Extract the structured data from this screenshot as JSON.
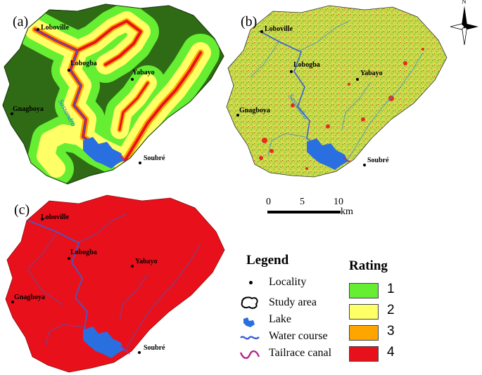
{
  "panels": [
    {
      "letter": "(a)"
    },
    {
      "letter": "(b)"
    },
    {
      "letter": "(c)"
    }
  ],
  "localities": {
    "loboville": "Loboville",
    "lobogba": "Lobogba",
    "yabayo": "Yabayo",
    "gnagboya": "Gnagboya",
    "soubre": "Soubré"
  },
  "river_label": "Sassandra",
  "scale_bar": {
    "ticks": [
      "0",
      "5",
      "10"
    ],
    "unit": "km"
  },
  "north_arrow": {
    "label": "N"
  },
  "legend": {
    "title": "Legend",
    "items": [
      {
        "label": "Locality",
        "icon": "dot-icon"
      },
      {
        "label": "Study area",
        "icon": "outline-icon"
      },
      {
        "label": "Lake",
        "icon": "lake-icon"
      },
      {
        "label": "Water course",
        "icon": "wave-icon"
      },
      {
        "label": "Tailrace canal",
        "icon": "canal-icon"
      }
    ]
  },
  "rating": {
    "title": "Rating",
    "classes": [
      {
        "value": "1",
        "color": "#66ee33"
      },
      {
        "value": "2",
        "color": "#ffff66"
      },
      {
        "value": "3",
        "color": "#ffa500"
      },
      {
        "value": "4",
        "color": "#e8101a"
      }
    ]
  },
  "colors": {
    "dark_green": "#2f6b14",
    "green": "#66ee33",
    "yellow": "#ffff66",
    "orange": "#ffa500",
    "red": "#e8101a",
    "river": "#3a5fd8",
    "lake": "#2a6fe0",
    "canal": "#b5278a"
  }
}
